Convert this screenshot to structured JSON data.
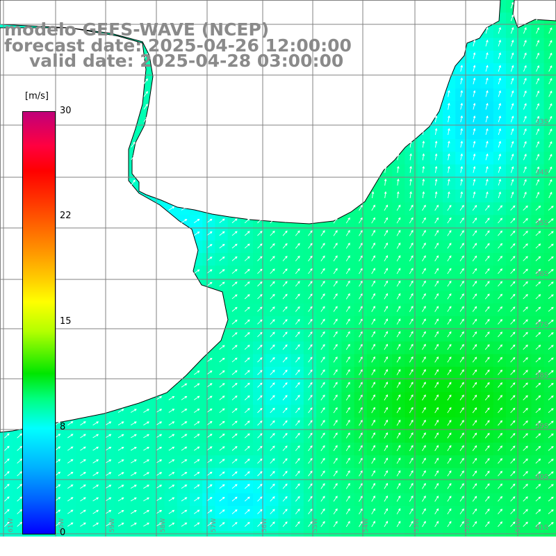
{
  "title": {
    "line1": "modelo GEFS-WAVE (NCEP)",
    "line2": "forecast date: 2025-04-26 12:00:00",
    "line3": "valid date: 2025-04-28 03:00:00"
  },
  "colorbar": {
    "unit": "[m/s]",
    "ticks": [
      "30",
      "22",
      "15",
      "8",
      "0"
    ]
  },
  "map": {
    "variable": "wind speed and direction",
    "colormap": [
      "#0000ff",
      "#00b4ff",
      "#00ffff",
      "#00ff80",
      "#00e600",
      "#b4ff00",
      "#ffff00",
      "#ff8c00",
      "#ff0000",
      "#c0007a"
    ],
    "land_color": "#ffffff",
    "grid_color": "#808080",
    "arrow_color": "#ffffff",
    "latitude_labels": [
      "33S",
      "34S",
      "35S",
      "36S",
      "37S",
      "38S",
      "39S",
      "40S",
      "41S"
    ],
    "longitude_labels": [
      "61W",
      "60W",
      "59W",
      "58W",
      "57W",
      "56W",
      "55W",
      "54W",
      "53W",
      "52W",
      "51W"
    ]
  }
}
